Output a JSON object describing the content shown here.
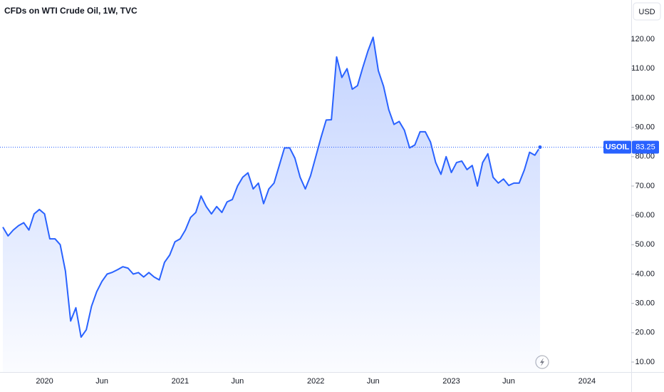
{
  "chart_data": {
    "type": "line",
    "title": "CFDs on WTI Crude Oil, 1W, TVC",
    "currency": "USD",
    "categories": [
      null,
      null,
      null,
      null,
      null,
      null,
      null,
      null,
      "2020",
      null,
      null,
      null,
      null,
      null,
      null,
      null,
      null,
      null,
      null,
      "Jun",
      null,
      null,
      null,
      null,
      null,
      null,
      null,
      null,
      null,
      null,
      null,
      null,
      null,
      null,
      "2021",
      null,
      null,
      null,
      null,
      null,
      null,
      null,
      null,
      null,
      null,
      "Jun",
      null,
      null,
      null,
      null,
      null,
      null,
      null,
      null,
      null,
      null,
      null,
      null,
      null,
      null,
      "2022",
      null,
      null,
      null,
      null,
      null,
      null,
      null,
      null,
      null,
      null,
      "Jun",
      null,
      null,
      null,
      null,
      null,
      null,
      null,
      null,
      null,
      null,
      null,
      null,
      null,
      null,
      "2023",
      null,
      null,
      null,
      null,
      null,
      null,
      null,
      null,
      null,
      null,
      "Jun",
      null,
      null,
      null,
      null,
      null,
      null,
      null,
      null,
      null,
      null,
      null,
      null,
      null,
      null,
      "2024"
    ],
    "series": [
      {
        "name": "USOIL",
        "color": "#2962ff",
        "values": [
          56,
          53,
          55,
          56.5,
          57.5,
          55,
          60.5,
          62,
          60.5,
          52,
          52,
          50,
          41,
          24,
          28.5,
          18.5,
          21,
          29,
          34,
          37.5,
          40,
          40.6,
          41.5,
          42.5,
          42,
          40,
          40.5,
          39,
          40.5,
          39,
          38,
          44,
          46.5,
          51,
          52,
          55,
          59.3,
          61,
          66.6,
          63,
          60.5,
          63,
          61,
          64.6,
          65.4,
          70,
          73,
          74.5,
          69,
          71,
          64,
          69,
          71,
          77,
          83,
          83,
          79.5,
          73,
          69,
          73.5,
          80,
          86.5,
          92.5,
          92.6,
          114,
          107,
          110,
          103,
          104.2,
          110.3,
          116,
          120.7,
          109.3,
          104,
          96,
          91,
          92,
          89,
          83,
          84,
          88.5,
          88.5,
          85,
          78,
          74,
          80,
          74.6,
          78,
          78.5,
          75.6,
          77,
          70,
          78,
          81,
          73,
          71,
          72.4,
          70.2,
          71,
          71,
          75.5,
          81.5,
          80.5,
          83.25,
          null,
          null,
          null,
          null,
          null,
          null,
          null,
          null,
          null
        ]
      }
    ],
    "ylim": [
      6.6,
      133.4
    ],
    "yticks": [
      {
        "value": 10,
        "label": "10.00"
      },
      {
        "value": 20,
        "label": "20.00"
      },
      {
        "value": 30,
        "label": "30.00"
      },
      {
        "value": 40,
        "label": "40.00"
      },
      {
        "value": 50,
        "label": "50.00"
      },
      {
        "value": 60,
        "label": "60.00"
      },
      {
        "value": 70,
        "label": "70.00"
      },
      {
        "value": 80,
        "label": "80.00"
      },
      {
        "value": 90,
        "label": "90.00"
      },
      {
        "value": 100,
        "label": "100.00"
      },
      {
        "value": 110,
        "label": "110.00"
      },
      {
        "value": 120,
        "label": "120.00"
      }
    ],
    "grid": false,
    "area": true
  }
}
